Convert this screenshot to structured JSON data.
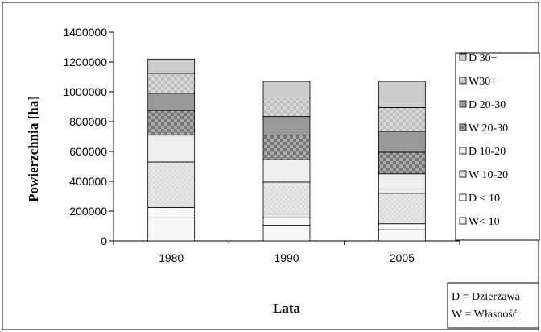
{
  "chart_data": {
    "type": "bar",
    "stacked": true,
    "title": "",
    "xlabel": "Lata",
    "ylabel": "Powierzchnia [ha]",
    "categories": [
      "1980",
      "1990",
      "2005"
    ],
    "ylim": [
      0,
      1400000
    ],
    "yticks": [
      0,
      200000,
      400000,
      600000,
      800000,
      1000000,
      1200000,
      1400000
    ],
    "ytick_labels": [
      "0",
      "200000",
      "400000",
      "600000",
      "800000",
      "1000000",
      "1200000",
      "1400000"
    ],
    "grid": false,
    "legend_position": "right",
    "series": [
      {
        "name": "W< 10",
        "color": "#f7f7f7",
        "pattern": "none",
        "values": [
          155000,
          105000,
          75000
        ]
      },
      {
        "name": "D < 10",
        "color": "#fafafa",
        "pattern": "none",
        "values": [
          70000,
          50000,
          40000
        ]
      },
      {
        "name": "W 10-20",
        "color": "#e8e8e8",
        "pattern": "fine-check",
        "values": [
          305000,
          240000,
          205000
        ]
      },
      {
        "name": "D 10-20",
        "color": "#eeeeee",
        "pattern": "none",
        "values": [
          180000,
          150000,
          130000
        ]
      },
      {
        "name": "W 20-30",
        "color": "#aaaaaa",
        "pattern": "check",
        "values": [
          165000,
          165000,
          145000
        ]
      },
      {
        "name": "D 20-30",
        "color": "#999999",
        "pattern": "none",
        "values": [
          115000,
          125000,
          140000
        ]
      },
      {
        "name": "W30+",
        "color": "#d8d8d8",
        "pattern": "check",
        "values": [
          135000,
          125000,
          160000
        ]
      },
      {
        "name": "D 30+",
        "color": "#cccccc",
        "pattern": "none",
        "values": [
          95000,
          110000,
          175000
        ]
      }
    ],
    "legend_order": [
      "D 30+",
      "W30+",
      "D 20-30",
      "W 20-30",
      "D 10-20",
      "W 10-20",
      "D < 10",
      "W< 10"
    ],
    "annotation": [
      "D = Dzierżawa",
      "W = Własność"
    ]
  }
}
